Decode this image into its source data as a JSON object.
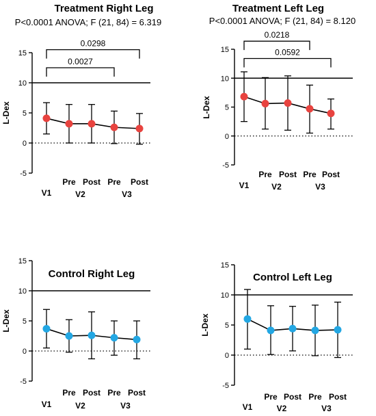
{
  "figure": {
    "background": "#ffffff",
    "marker_colors": {
      "treatment": "#e8433f",
      "control": "#23a7e3"
    }
  },
  "chart_data": [
    {
      "id": "p1",
      "type": "line",
      "title": "Treatment Right Leg",
      "subtitle": "P<0.0001 ANOVA; F (21, 84) = 6.319",
      "ylabel": "L-Dex",
      "ylim": [
        -5,
        15
      ],
      "yticks": [
        -5,
        0,
        5,
        10,
        15
      ],
      "reference_lines": [
        {
          "y": 10,
          "style": "solid"
        },
        {
          "y": 0,
          "style": "dotted"
        }
      ],
      "x_labels_top": [
        "",
        "Pre",
        "Post",
        "Pre",
        "Post"
      ],
      "x_labels_bottom": [
        "V1",
        "V2",
        "V3"
      ],
      "marker_color": "#e8433f",
      "mean": [
        4.1,
        3.2,
        3.2,
        2.6,
        2.4
      ],
      "err_low": [
        1.5,
        0.0,
        0.0,
        -0.1,
        -0.2
      ],
      "err_high": [
        6.7,
        6.4,
        6.4,
        5.3,
        4.9
      ],
      "brackets": [
        {
          "from": 0,
          "to": 4,
          "label": "0.0298",
          "y": 15.5
        },
        {
          "from": 0,
          "to": 3,
          "label": "0.0027",
          "y": 12.5
        }
      ]
    },
    {
      "id": "p2",
      "type": "line",
      "title": "Treatment Left Leg",
      "subtitle": "P<0.0001 ANOVA; F (21, 84) = 8.120",
      "ylabel": "L-Dex",
      "ylim": [
        -5,
        15
      ],
      "yticks": [
        -5,
        0,
        5,
        10,
        15
      ],
      "reference_lines": [
        {
          "y": 10,
          "style": "solid"
        },
        {
          "y": 0,
          "style": "dotted"
        }
      ],
      "x_labels_top": [
        "",
        "Pre",
        "Post",
        "Pre",
        "Post"
      ],
      "x_labels_bottom": [
        "V1",
        "V2",
        "V3"
      ],
      "marker_color": "#e8433f",
      "mean": [
        6.8,
        5.6,
        5.7,
        4.7,
        3.9
      ],
      "err_low": [
        2.5,
        1.2,
        1.0,
        0.5,
        1.2
      ],
      "err_high": [
        11.1,
        10.1,
        10.4,
        8.8,
        6.4
      ],
      "brackets": [
        {
          "from": 0,
          "to": 3,
          "label": "0.0218",
          "y": 16.4
        },
        {
          "from": 0,
          "to": 4,
          "label": "0.0592",
          "y": 13.4
        }
      ]
    },
    {
      "id": "p3",
      "type": "line",
      "title": "Control Right Leg",
      "subtitle": "",
      "ylabel": "L-Dex",
      "ylim": [
        -5,
        15
      ],
      "yticks": [
        -5,
        0,
        5,
        10,
        15
      ],
      "reference_lines": [
        {
          "y": 10,
          "style": "solid"
        },
        {
          "y": 0,
          "style": "dotted"
        }
      ],
      "x_labels_top": [
        "",
        "Pre",
        "Post",
        "Pre",
        "Post"
      ],
      "x_labels_bottom": [
        "V1",
        "V2",
        "V3"
      ],
      "marker_color": "#23a7e3",
      "mean": [
        3.7,
        2.5,
        2.6,
        2.2,
        1.9
      ],
      "err_low": [
        0.5,
        -0.2,
        -1.3,
        -0.7,
        -1.3
      ],
      "err_high": [
        6.9,
        5.2,
        6.5,
        5.0,
        5.0
      ],
      "brackets": []
    },
    {
      "id": "p4",
      "type": "line",
      "title": "Control Left Leg",
      "subtitle": "",
      "ylabel": "L-Dex",
      "ylim": [
        -5,
        15
      ],
      "yticks": [
        -5,
        0,
        5,
        10,
        15
      ],
      "reference_lines": [
        {
          "y": 10,
          "style": "solid"
        },
        {
          "y": 0,
          "style": "dotted"
        }
      ],
      "x_labels_top": [
        "",
        "Pre",
        "Post",
        "Pre",
        "Post"
      ],
      "x_labels_bottom": [
        "V1",
        "V2",
        "V3"
      ],
      "marker_color": "#23a7e3",
      "mean": [
        6.0,
        4.1,
        4.4,
        4.1,
        4.2
      ],
      "err_low": [
        1.0,
        0.1,
        0.7,
        -0.1,
        -0.4
      ],
      "err_high": [
        10.9,
        8.2,
        8.1,
        8.3,
        8.8
      ],
      "brackets": []
    }
  ]
}
